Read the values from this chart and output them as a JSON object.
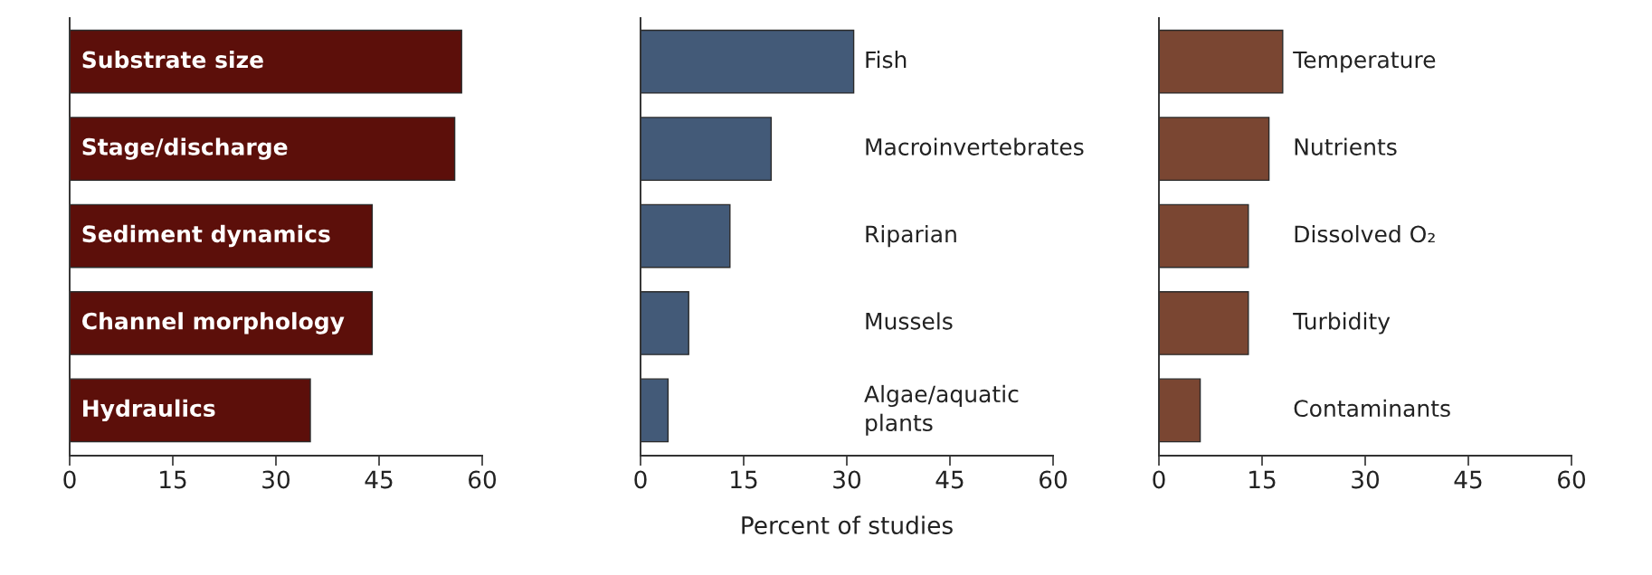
{
  "chart_data": [
    {
      "type": "bar",
      "orientation": "horizontal",
      "categories": [
        "Substrate size",
        "Stage/discharge",
        "Sediment dynamics",
        "Channel morphology",
        "Hydraulics"
      ],
      "values": [
        57,
        56,
        44,
        44,
        35
      ],
      "color": "#5c0f0a",
      "xlim": [
        0,
        60
      ],
      "xticks": [
        0,
        15,
        30,
        45,
        60
      ],
      "grid": false
    },
    {
      "type": "bar",
      "orientation": "horizontal",
      "categories": [
        "Fish",
        "Macroinvertebrates",
        "Riparian",
        "Mussels",
        "Algae/aquatic\nplants"
      ],
      "values": [
        31,
        19,
        13,
        7,
        4
      ],
      "color": "#435a78",
      "xlim": [
        0,
        60
      ],
      "xticks": [
        0,
        15,
        30,
        45,
        60
      ],
      "xlabel": "Percent of studies",
      "grid": false
    },
    {
      "type": "bar",
      "orientation": "horizontal",
      "categories": [
        "Temperature",
        "Nutrients",
        "Dissolved O₂",
        "Turbidity",
        "Contaminants"
      ],
      "values": [
        18,
        16,
        13,
        13,
        6
      ],
      "color": "#7a4632",
      "xlim": [
        0,
        60
      ],
      "xticks": [
        0,
        15,
        30,
        45,
        60
      ],
      "grid": false
    }
  ]
}
